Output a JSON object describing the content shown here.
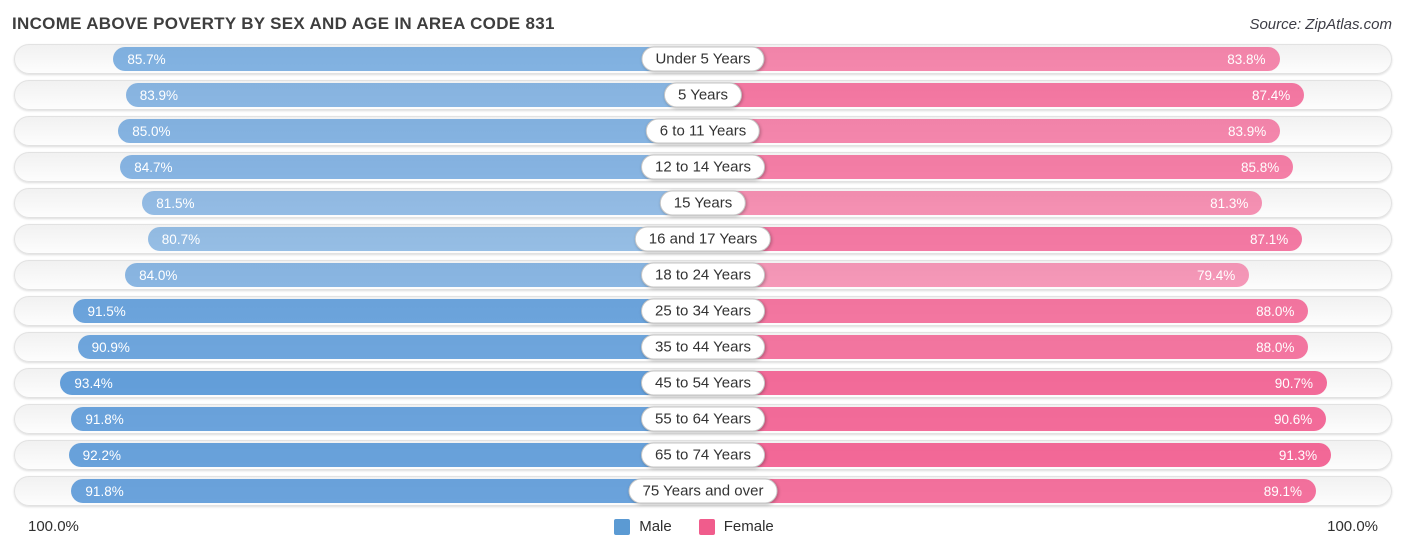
{
  "title": "INCOME ABOVE POVERTY BY SEX AND AGE IN AREA CODE 831",
  "source": "Source: ZipAtlas.com",
  "axis": {
    "left_label": "100.0%",
    "right_label": "100.0%"
  },
  "legend": {
    "male_label": "Male",
    "female_label": "Female"
  },
  "colors": {
    "male_base": "#4a8fd4",
    "female_base": "#f0457f",
    "male_legend": "#5b9ad3",
    "female_legend": "#f05c8c"
  },
  "chart_data": {
    "type": "bar",
    "orientation": "bidirectional-horizontal",
    "title": "Income Above Poverty by Sex and Age in Area Code 831",
    "categories": [
      "Under 5 Years",
      "5 Years",
      "6 to 11 Years",
      "12 to 14 Years",
      "15 Years",
      "16 and 17 Years",
      "18 to 24 Years",
      "25 to 34 Years",
      "35 to 44 Years",
      "45 to 54 Years",
      "55 to 64 Years",
      "65 to 74 Years",
      "75 Years and over"
    ],
    "series": [
      {
        "name": "Male",
        "values": [
          85.7,
          83.9,
          85.0,
          84.7,
          81.5,
          80.7,
          84.0,
          91.5,
          90.9,
          93.4,
          91.8,
          92.2,
          91.8
        ]
      },
      {
        "name": "Female",
        "values": [
          83.8,
          87.4,
          83.9,
          85.8,
          81.3,
          87.1,
          79.4,
          88.0,
          88.0,
          90.7,
          90.6,
          91.3,
          89.1
        ]
      }
    ],
    "xlim": [
      0,
      100
    ],
    "value_suffix": "%",
    "legend_position": "bottom",
    "grid": false
  }
}
